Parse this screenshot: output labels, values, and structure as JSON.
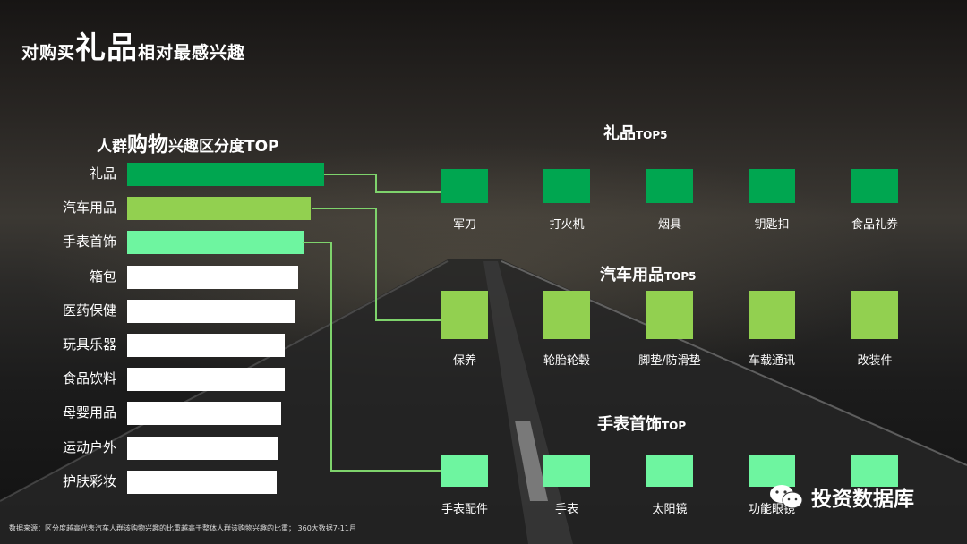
{
  "title": {
    "pre": "对购买",
    "big": "礼品",
    "post": "相对最感兴趣"
  },
  "left_title": {
    "pre": "人群",
    "big": "购物",
    "post": "兴趣区分度TOP"
  },
  "footer": "数据来源：区分度越高代表汽车人群该购物兴趣的比重越高于整体人群该购物兴趣的比重； 360大数据7-11月",
  "watermark": "投资数据库",
  "colors": {
    "gift": "#00a650",
    "car": "#92d050",
    "watch": "#6ef5a0",
    "other": "#ffffff",
    "line": "#7ed36c"
  },
  "groups": [
    {
      "title": "礼品",
      "suffix": "TOP5",
      "items": [
        "军刀",
        "打火机",
        "烟具",
        "钥匙扣",
        "食品礼券"
      ]
    },
    {
      "title": "汽车用品",
      "suffix": "TOP5",
      "items": [
        "保养",
        "轮胎轮毂",
        "脚垫/防滑垫",
        "车载通讯",
        "改装件"
      ]
    },
    {
      "title": "手表首饰",
      "suffix": "TOP",
      "items": [
        "手表配件",
        "手表",
        "太阳镜",
        "功能眼镜",
        ""
      ]
    }
  ],
  "chart_data": {
    "type": "bar",
    "orientation": "horizontal",
    "title": "人群购物兴趣区分度TOP",
    "categories": [
      "礼品",
      "汽车用品",
      "手表首饰",
      "箱包",
      "医药保健",
      "玩具乐器",
      "食品饮料",
      "母婴用品",
      "运动户外",
      "护肤彩妆"
    ],
    "values": [
      100,
      93,
      90,
      87,
      85,
      80,
      80,
      78,
      77,
      76
    ],
    "xlim": [
      0,
      100
    ],
    "highlight_colors": [
      "#00a650",
      "#92d050",
      "#6ef5a0",
      "#ffffff",
      "#ffffff",
      "#ffffff",
      "#ffffff",
      "#ffffff",
      "#ffffff",
      "#ffffff"
    ],
    "grid": false,
    "legend": "none"
  }
}
